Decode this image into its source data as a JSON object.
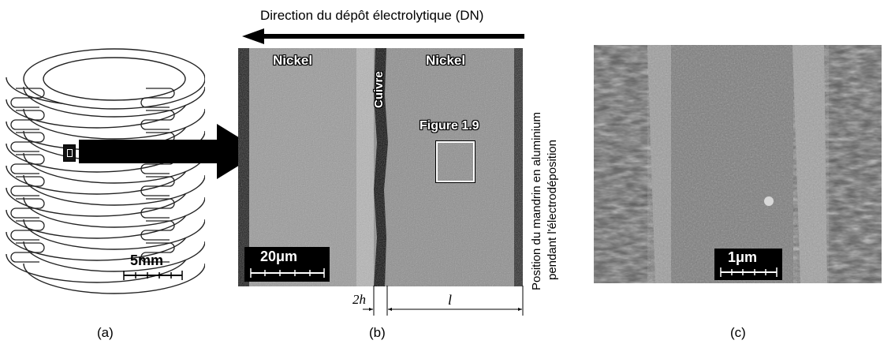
{
  "panel_a": {
    "caption": "(a)",
    "scale_label": "5mm"
  },
  "panel_b": {
    "caption": "(b)",
    "direction_label": "Direction du dépôt électrolytique (DN)",
    "label_nickel_left": "Nickel",
    "label_nickel_right": "Nickel",
    "label_cuivre": "Cuivre",
    "figure_ref": "Figure 1.9",
    "scale_label": "20μm",
    "dim_2h": "2h",
    "dim_l": "l",
    "side_note_line1": "Position du mandrin en aluminium",
    "side_note_line2": "pendant l'électrodéposition"
  },
  "panel_c": {
    "caption": "(c)",
    "scale_label": "1μm"
  }
}
